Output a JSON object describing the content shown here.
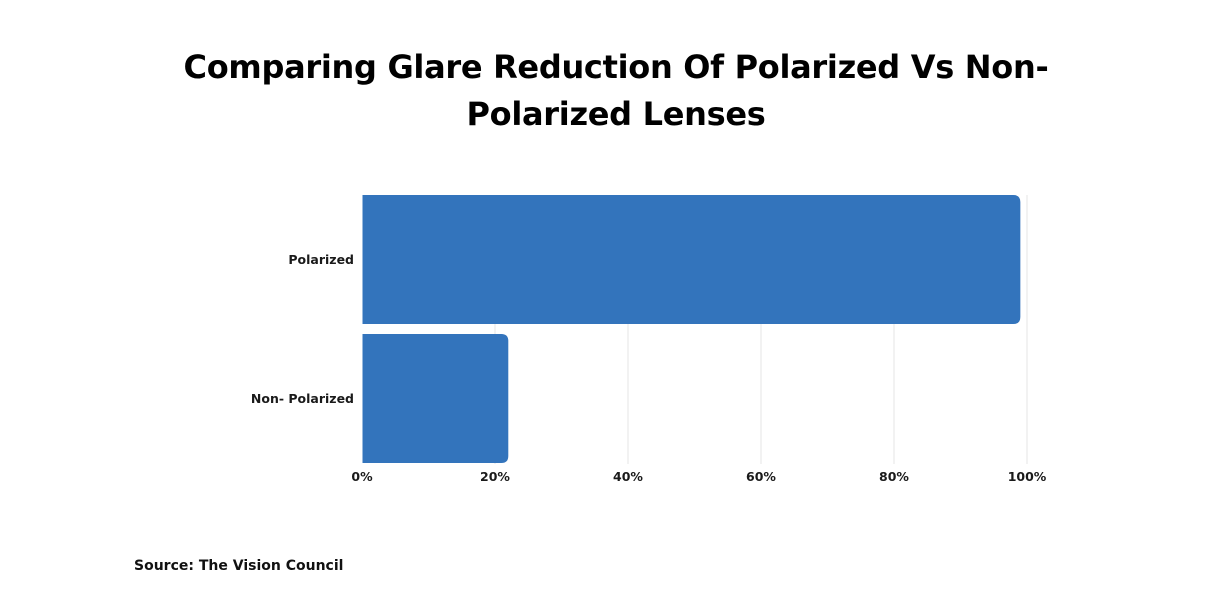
{
  "chart_data": {
    "type": "bar",
    "orientation": "horizontal",
    "title_lines": [
      "Comparing Glare Reduction Of Polarized Vs Non-",
      "Polarized Lenses"
    ],
    "categories": [
      "Polarized",
      "Non- Polarized"
    ],
    "values": [
      99,
      22
    ],
    "value_unit": "%",
    "xlim": [
      0,
      100
    ],
    "x_ticks": [
      0,
      20,
      40,
      60,
      80,
      100
    ],
    "x_tick_labels": [
      "0%",
      "20%",
      "40%",
      "60%",
      "80%",
      "100%"
    ],
    "grid": true,
    "legend": "none",
    "bar_color": "#3374bc",
    "grid_color": "#e6e6e6"
  },
  "source": "Source: The Vision Council"
}
